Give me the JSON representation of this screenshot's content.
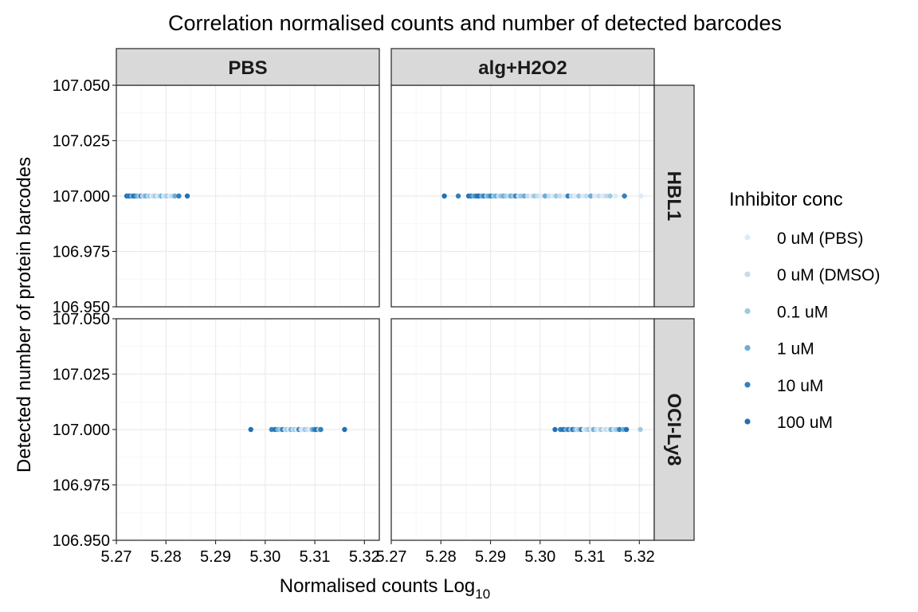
{
  "chart_data": {
    "type": "scatter",
    "title": "Correlation normalised counts and number of detected barcodes",
    "xlabel_main": "Normalised counts Log",
    "xlabel_sub": "10",
    "ylabel": "Detected number of protein barcodes",
    "xlim": [
      5.27,
      5.323
    ],
    "ylim": [
      106.95,
      107.05
    ],
    "xticks": [
      "5.27",
      "5.28",
      "5.29",
      "5.30",
      "5.31",
      "5.32"
    ],
    "xtick_values": [
      5.27,
      5.28,
      5.29,
      5.3,
      5.31,
      5.32
    ],
    "yticks": [
      "107.050",
      "107.025",
      "107.000",
      "106.975",
      "106.950"
    ],
    "ytick_values": [
      107.05,
      107.025,
      107.0,
      106.975,
      106.95
    ],
    "grid": true,
    "facet_cols": [
      "PBS",
      "alg+H2O2"
    ],
    "facet_rows": [
      "HBL1",
      "OCI-Ly8"
    ],
    "legend": {
      "title": "Inhibitor conc",
      "position": "right",
      "entries": [
        {
          "label": "0 uM (PBS)",
          "color": "#deebf7"
        },
        {
          "label": "0 uM (DMSO)",
          "color": "#c6dbef"
        },
        {
          "label": "0.1 uM",
          "color": "#9ecae1"
        },
        {
          "label": "1 uM",
          "color": "#6baed6"
        },
        {
          "label": "10 uM",
          "color": "#3182bd"
        },
        {
          "label": "100 uM",
          "color": "#2171b5"
        }
      ]
    },
    "panels": [
      {
        "col": 0,
        "row": 0,
        "y": 107.0,
        "points": [
          [
            5.2721,
            5
          ],
          [
            5.2725,
            4
          ],
          [
            5.2728,
            5
          ],
          [
            5.2731,
            3
          ],
          [
            5.2735,
            5
          ],
          [
            5.2738,
            4
          ],
          [
            5.2742,
            3
          ],
          [
            5.2746,
            2
          ],
          [
            5.275,
            4
          ],
          [
            5.2753,
            1
          ],
          [
            5.2757,
            2
          ],
          [
            5.276,
            3
          ],
          [
            5.2764,
            1
          ],
          [
            5.2767,
            2
          ],
          [
            5.2771,
            0
          ],
          [
            5.2775,
            1
          ],
          [
            5.2779,
            2
          ],
          [
            5.2783,
            0
          ],
          [
            5.2787,
            1
          ],
          [
            5.2791,
            3
          ],
          [
            5.2795,
            0
          ],
          [
            5.2799,
            1
          ],
          [
            5.2803,
            2
          ],
          [
            5.2807,
            0
          ],
          [
            5.2812,
            1
          ],
          [
            5.2818,
            3
          ],
          [
            5.2826,
            4
          ],
          [
            5.2843,
            5
          ]
        ]
      },
      {
        "col": 1,
        "row": 0,
        "y": 107.0,
        "points": [
          [
            5.2807,
            5
          ],
          [
            5.2835,
            4
          ],
          [
            5.2856,
            5
          ],
          [
            5.2861,
            4
          ],
          [
            5.2866,
            3
          ],
          [
            5.2871,
            4
          ],
          [
            5.2876,
            5
          ],
          [
            5.2882,
            3
          ],
          [
            5.2887,
            4
          ],
          [
            5.2892,
            2
          ],
          [
            5.2896,
            3
          ],
          [
            5.2901,
            4
          ],
          [
            5.2906,
            2
          ],
          [
            5.2911,
            3
          ],
          [
            5.2916,
            1
          ],
          [
            5.2921,
            2
          ],
          [
            5.2926,
            3
          ],
          [
            5.2931,
            2
          ],
          [
            5.2936,
            1
          ],
          [
            5.2941,
            3
          ],
          [
            5.2946,
            2
          ],
          [
            5.2951,
            4
          ],
          [
            5.2956,
            1
          ],
          [
            5.2961,
            2
          ],
          [
            5.2968,
            3
          ],
          [
            5.2975,
            1
          ],
          [
            5.2982,
            0
          ],
          [
            5.2988,
            2
          ],
          [
            5.2995,
            1
          ],
          [
            5.3002,
            0
          ],
          [
            5.301,
            3
          ],
          [
            5.3018,
            1
          ],
          [
            5.3025,
            0
          ],
          [
            5.3032,
            2
          ],
          [
            5.304,
            1
          ],
          [
            5.3048,
            0
          ],
          [
            5.3056,
            4
          ],
          [
            5.3063,
            1
          ],
          [
            5.307,
            0
          ],
          [
            5.3078,
            2
          ],
          [
            5.3086,
            0
          ],
          [
            5.3093,
            1
          ],
          [
            5.3102,
            3
          ],
          [
            5.311,
            0
          ],
          [
            5.3118,
            1
          ],
          [
            5.3126,
            0
          ],
          [
            5.3133,
            1
          ],
          [
            5.3141,
            2
          ],
          [
            5.3152,
            0
          ],
          [
            5.317,
            4
          ],
          [
            5.3203,
            0
          ]
        ]
      },
      {
        "col": 0,
        "row": 1,
        "y": 107.0,
        "points": [
          [
            5.2971,
            5
          ],
          [
            5.3013,
            4
          ],
          [
            5.302,
            5
          ],
          [
            5.3025,
            3
          ],
          [
            5.303,
            2
          ],
          [
            5.3035,
            4
          ],
          [
            5.304,
            1
          ],
          [
            5.3044,
            2
          ],
          [
            5.3048,
            0
          ],
          [
            5.3052,
            3
          ],
          [
            5.3056,
            1
          ],
          [
            5.306,
            2
          ],
          [
            5.3064,
            0
          ],
          [
            5.3068,
            4
          ],
          [
            5.3072,
            1
          ],
          [
            5.3076,
            0
          ],
          [
            5.308,
            2
          ],
          [
            5.3085,
            1
          ],
          [
            5.309,
            0
          ],
          [
            5.3095,
            3
          ],
          [
            5.31,
            4
          ],
          [
            5.3104,
            5
          ],
          [
            5.3108,
            2
          ],
          [
            5.3112,
            4
          ],
          [
            5.316,
            5
          ]
        ]
      },
      {
        "col": 1,
        "row": 1,
        "y": 107.0,
        "points": [
          [
            5.303,
            5
          ],
          [
            5.3041,
            4
          ],
          [
            5.3047,
            5
          ],
          [
            5.3052,
            3
          ],
          [
            5.3057,
            4
          ],
          [
            5.3062,
            2
          ],
          [
            5.3066,
            5
          ],
          [
            5.307,
            3
          ],
          [
            5.3074,
            1
          ],
          [
            5.3078,
            2
          ],
          [
            5.3083,
            4
          ],
          [
            5.3088,
            0
          ],
          [
            5.3093,
            1
          ],
          [
            5.3098,
            2
          ],
          [
            5.3103,
            0
          ],
          [
            5.3108,
            3
          ],
          [
            5.3113,
            1
          ],
          [
            5.3118,
            0
          ],
          [
            5.3123,
            2
          ],
          [
            5.3128,
            0
          ],
          [
            5.3133,
            1
          ],
          [
            5.3138,
            0
          ],
          [
            5.3143,
            3
          ],
          [
            5.3148,
            1
          ],
          [
            5.3154,
            2
          ],
          [
            5.316,
            4
          ],
          [
            5.3168,
            3
          ],
          [
            5.3174,
            5
          ],
          [
            5.3202,
            2
          ]
        ]
      }
    ]
  }
}
